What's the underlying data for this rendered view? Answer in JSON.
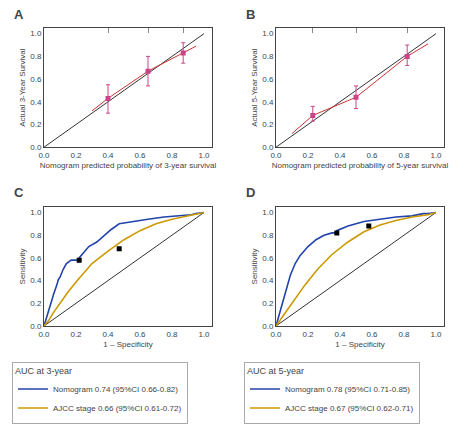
{
  "chart_data": [
    {
      "type": "line",
      "title": "A",
      "x_label": "Nomogram predicted probability of 3-year survival",
      "y_label": "Actual 3-Year Survival",
      "xlim": [
        0.0,
        1.05
      ],
      "ylim": [
        0.0,
        1.05
      ],
      "xticks": [
        {
          "value": 0.0,
          "label": "0.0"
        },
        0.2,
        0.4,
        0.6,
        0.8,
        {
          "value": 1.0,
          "label": "1.0"
        }
      ],
      "yticks": [
        {
          "value": 0.0,
          "label": "0.0"
        },
        0.2,
        0.4,
        0.6,
        0.8,
        {
          "value": 1.0,
          "label": "1.0"
        }
      ],
      "grid": false,
      "series": [
        {
          "color": "#333333",
          "x": [
            0,
            1
          ],
          "values": [
            0,
            1
          ]
        },
        {
          "color": "#cc3333",
          "x": [
            0.3,
            0.4,
            0.65,
            0.87,
            0.95
          ],
          "values": [
            0.32,
            0.43,
            0.67,
            0.83,
            0.89
          ]
        },
        {
          "type": "scatter",
          "marker": "square",
          "color": "#cc4488",
          "x": [
            0.4,
            0.65,
            0.87
          ],
          "values": [
            0.43,
            0.67,
            0.83
          ],
          "error_low": [
            0.13,
            0.13,
            0.09
          ],
          "error_high": [
            0.12,
            0.13,
            0.09
          ]
        },
        {
          "type": "rug",
          "color": "#888888",
          "x": [
            0.4,
            0.65,
            0.87
          ]
        }
      ]
    },
    {
      "type": "line",
      "title": "B",
      "x_label": "Nomogram predicted probability of 5-year survival",
      "y_label": "Actual 5-Year Survival",
      "xlim": [
        0.0,
        1.05
      ],
      "ylim": [
        0.0,
        1.05
      ],
      "xticks": [
        {
          "value": 0.0,
          "label": "0.0"
        },
        0.2,
        0.4,
        0.6,
        0.8,
        {
          "value": 1.0,
          "label": "1.0"
        }
      ],
      "yticks": [
        {
          "value": 0.0,
          "label": "0.0"
        },
        0.2,
        0.4,
        0.6,
        0.8,
        {
          "value": 1.0,
          "label": "1.0"
        }
      ],
      "grid": false,
      "series": [
        {
          "color": "#333333",
          "x": [
            0,
            1
          ],
          "values": [
            0,
            1
          ]
        },
        {
          "color": "#cc3333",
          "x": [
            0.1,
            0.23,
            0.5,
            0.82,
            0.95
          ],
          "values": [
            0.12,
            0.28,
            0.44,
            0.8,
            0.91
          ]
        },
        {
          "type": "scatter",
          "marker": "square",
          "color": "#cc4488",
          "x": [
            0.23,
            0.5,
            0.82
          ],
          "values": [
            0.28,
            0.44,
            0.8
          ],
          "error_low": [
            0.05,
            0.1,
            0.08
          ],
          "error_high": [
            0.08,
            0.1,
            0.1
          ]
        },
        {
          "type": "rug",
          "color": "#888888",
          "x": [
            0.23,
            0.5,
            0.82
          ]
        }
      ]
    },
    {
      "type": "line",
      "title": "C",
      "x_label": "1 – Specificity",
      "y_label": "Sensitivity",
      "xlim": [
        0.0,
        1.05
      ],
      "ylim": [
        0.0,
        1.05
      ],
      "xticks": [
        {
          "value": 0.0,
          "label": "0.0"
        },
        0.2,
        0.4,
        0.6,
        0.8,
        {
          "value": 1.0,
          "label": "1.0"
        }
      ],
      "yticks": [
        {
          "value": 0.0,
          "label": "0.0"
        },
        0.2,
        0.4,
        0.6,
        0.8,
        {
          "value": 1.0,
          "label": "1.0"
        }
      ],
      "grid": false,
      "legend": "bottom",
      "legend_title": "AUC at 3-year",
      "series": [
        {
          "color": "#333333",
          "x": [
            0,
            1
          ],
          "values": [
            0,
            1
          ]
        },
        {
          "name": "Nomogram 0.74 (95%CI 0.66-0.82)",
          "color": "#2244aa",
          "x": [
            0.0,
            0.01,
            0.02,
            0.04,
            0.06,
            0.08,
            0.09,
            0.09,
            0.1,
            0.12,
            0.14,
            0.17,
            0.22,
            0.22,
            0.25,
            0.28,
            0.33,
            0.38,
            0.42,
            0.47,
            0.55,
            0.65,
            0.75,
            0.85,
            0.92,
            0.95,
            1.0
          ],
          "values": [
            0.0,
            0.05,
            0.1,
            0.18,
            0.28,
            0.36,
            0.4,
            0.41,
            0.43,
            0.5,
            0.55,
            0.58,
            0.58,
            0.6,
            0.65,
            0.7,
            0.74,
            0.8,
            0.85,
            0.9,
            0.92,
            0.94,
            0.96,
            0.97,
            0.98,
            0.99,
            1.0
          ]
        },
        {
          "name": "AJCC stage 0.66 (95%CI 0.61-0.72)",
          "color": "#cc9900",
          "x": [
            0.0,
            0.03,
            0.06,
            0.1,
            0.15,
            0.22,
            0.3,
            0.4,
            0.5,
            0.6,
            0.7,
            0.8,
            0.9,
            1.0
          ],
          "values": [
            0.0,
            0.05,
            0.12,
            0.2,
            0.3,
            0.42,
            0.55,
            0.66,
            0.76,
            0.84,
            0.9,
            0.94,
            0.97,
            1.0
          ]
        },
        {
          "type": "scatter",
          "marker": "square",
          "color": "#000000",
          "x": [
            0.22,
            0.47
          ],
          "values": [
            0.58,
            0.68
          ]
        }
      ]
    },
    {
      "type": "line",
      "title": "D",
      "x_label": "1 – Specificity",
      "y_label": "Sensitivity",
      "xlim": [
        0.0,
        1.05
      ],
      "ylim": [
        0.0,
        1.05
      ],
      "xticks": [
        {
          "value": 0.0,
          "label": "0.0"
        },
        0.2,
        0.4,
        0.6,
        0.8,
        {
          "value": 1.0,
          "label": "1.0"
        }
      ],
      "yticks": [
        {
          "value": 0.0,
          "label": "0.0"
        },
        0.2,
        0.4,
        0.6,
        0.8,
        {
          "value": 1.0,
          "label": "1.0"
        }
      ],
      "grid": false,
      "legend": "bottom",
      "legend_title": "AUC at 5-year",
      "series": [
        {
          "color": "#333333",
          "x": [
            0,
            1
          ],
          "values": [
            0,
            1
          ]
        },
        {
          "name": "Nomogram 0.78 (95%CI 0.71-0.85)",
          "color": "#2244aa",
          "x": [
            0.0,
            0.01,
            0.02,
            0.04,
            0.06,
            0.09,
            0.12,
            0.15,
            0.2,
            0.25,
            0.3,
            0.35,
            0.38,
            0.38,
            0.45,
            0.55,
            0.65,
            0.75,
            0.85,
            0.92,
            0.95,
            1.0
          ],
          "values": [
            0.0,
            0.05,
            0.1,
            0.2,
            0.32,
            0.45,
            0.55,
            0.62,
            0.7,
            0.76,
            0.8,
            0.82,
            0.82,
            0.84,
            0.88,
            0.92,
            0.94,
            0.96,
            0.97,
            0.99,
            0.99,
            1.0
          ]
        },
        {
          "name": "AJCC stage 0.67 (95%CI 0.62-0.71)",
          "color": "#cc9900",
          "x": [
            0.0,
            0.03,
            0.07,
            0.12,
            0.18,
            0.26,
            0.35,
            0.45,
            0.55,
            0.65,
            0.75,
            0.85,
            0.95,
            1.0
          ],
          "values": [
            0.0,
            0.06,
            0.14,
            0.24,
            0.36,
            0.5,
            0.63,
            0.74,
            0.83,
            0.89,
            0.93,
            0.96,
            0.98,
            1.0
          ]
        },
        {
          "type": "scatter",
          "marker": "square",
          "color": "#000000",
          "x": [
            0.38,
            0.58
          ],
          "values": [
            0.82,
            0.88
          ]
        }
      ]
    }
  ]
}
